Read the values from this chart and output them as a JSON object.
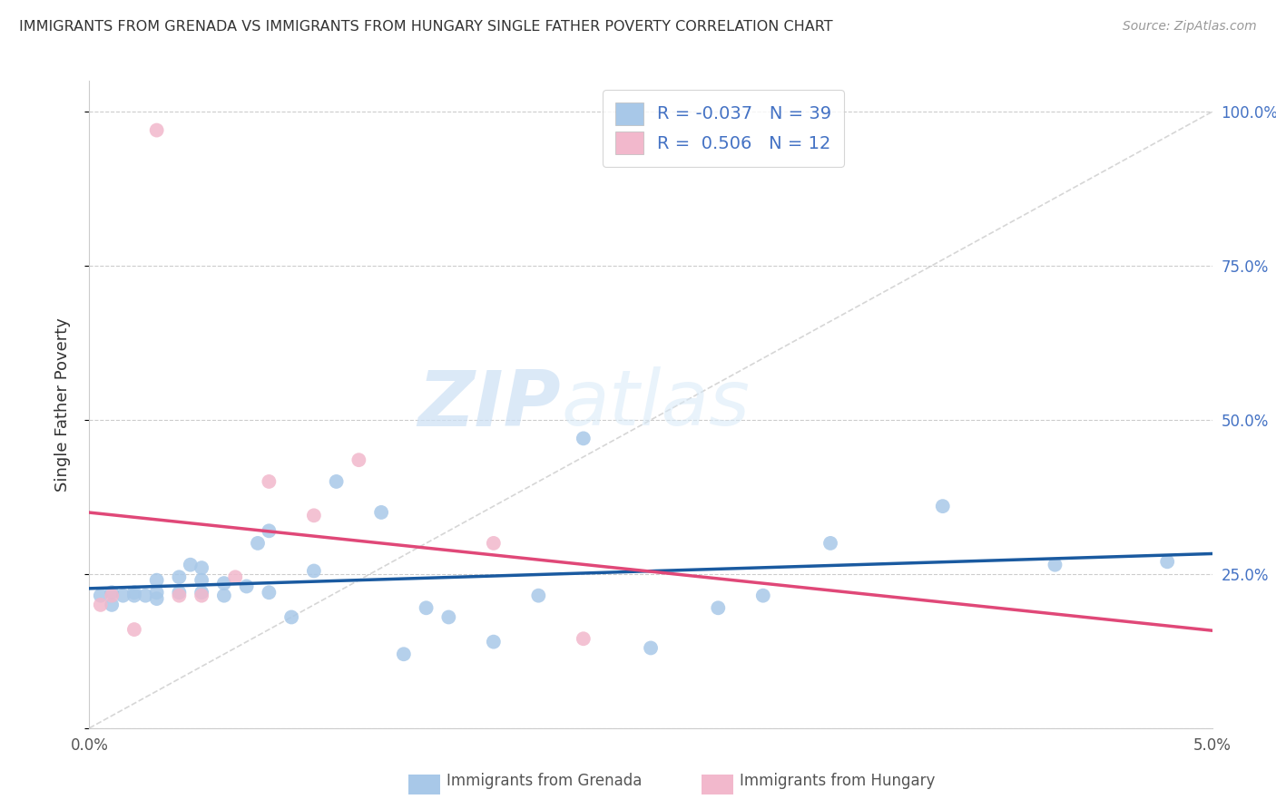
{
  "title": "IMMIGRANTS FROM GRENADA VS IMMIGRANTS FROM HUNGARY SINGLE FATHER POVERTY CORRELATION CHART",
  "source": "Source: ZipAtlas.com",
  "ylabel": "Single Father Poverty",
  "legend_label1": "Immigrants from Grenada",
  "legend_label2": "Immigrants from Hungary",
  "R1": -0.037,
  "N1": 39,
  "R2": 0.506,
  "N2": 12,
  "color_grenada": "#a8c8e8",
  "color_hungary": "#f2b8cc",
  "line_color_grenada": "#1a5aa0",
  "line_color_hungary": "#e04878",
  "watermark_zip": "ZIP",
  "watermark_atlas": "atlas",
  "grenada_x": [
    0.0005,
    0.001,
    0.001,
    0.0015,
    0.002,
    0.002,
    0.0025,
    0.003,
    0.003,
    0.003,
    0.004,
    0.004,
    0.0045,
    0.005,
    0.005,
    0.005,
    0.006,
    0.006,
    0.007,
    0.0075,
    0.008,
    0.008,
    0.009,
    0.01,
    0.011,
    0.013,
    0.014,
    0.015,
    0.016,
    0.018,
    0.02,
    0.022,
    0.025,
    0.028,
    0.03,
    0.033,
    0.038,
    0.043,
    0.048
  ],
  "grenada_y": [
    0.215,
    0.22,
    0.2,
    0.215,
    0.215,
    0.22,
    0.215,
    0.21,
    0.22,
    0.24,
    0.22,
    0.245,
    0.265,
    0.22,
    0.24,
    0.26,
    0.215,
    0.235,
    0.23,
    0.3,
    0.22,
    0.32,
    0.18,
    0.255,
    0.4,
    0.35,
    0.12,
    0.195,
    0.18,
    0.14,
    0.215,
    0.47,
    0.13,
    0.195,
    0.215,
    0.3,
    0.36,
    0.265,
    0.27
  ],
  "hungary_x": [
    0.0005,
    0.001,
    0.002,
    0.003,
    0.004,
    0.005,
    0.0065,
    0.008,
    0.01,
    0.012,
    0.018,
    0.022
  ],
  "hungary_y": [
    0.2,
    0.215,
    0.16,
    0.97,
    0.215,
    0.215,
    0.245,
    0.4,
    0.345,
    0.435,
    0.3,
    0.145
  ],
  "xlim": [
    0,
    0.05
  ],
  "ylim": [
    0,
    1.05
  ],
  "yticks": [
    0.0,
    0.25,
    0.5,
    0.75,
    1.0
  ],
  "right_ytick_labels": [
    "",
    "25.0%",
    "50.0%",
    "75.0%",
    "100.0%"
  ],
  "xtick_positions": [
    0.0,
    0.01,
    0.02,
    0.03,
    0.04,
    0.05
  ],
  "xtick_labels": [
    "0.0%",
    "",
    "",
    "",
    "",
    "5.0%"
  ]
}
